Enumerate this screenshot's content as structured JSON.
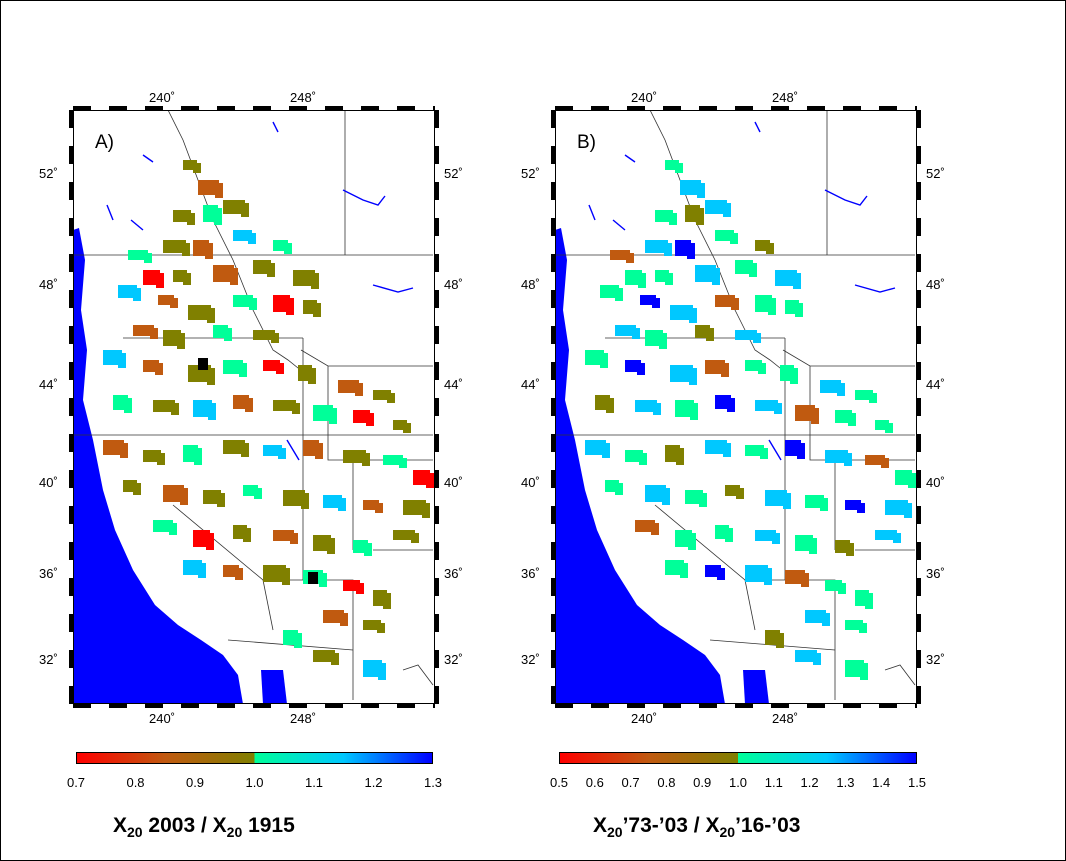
{
  "panels": [
    {
      "label": "A)",
      "top_lon_labels": [
        "240˚",
        "248˚"
      ],
      "bottom_lon_labels": [
        "240˚",
        "248˚"
      ],
      "left_lat_labels": [
        "52˚",
        "48˚",
        "44˚",
        "40˚",
        "36˚",
        "32˚"
      ],
      "right_lat_labels": [
        "52˚",
        "48˚",
        "44˚",
        "40˚",
        "36˚",
        "32˚"
      ],
      "colorbar": {
        "min": 0.7,
        "max": 1.3,
        "ticks": [
          "0.7",
          "0.8",
          "0.9",
          "1.0",
          "1.1",
          "1.2",
          "1.3"
        ],
        "title_parts": [
          "X",
          "20",
          " 2003 / X",
          "20",
          " 1915"
        ]
      }
    },
    {
      "label": "B)",
      "top_lon_labels": [
        "240˚",
        "248˚"
      ],
      "bottom_lon_labels": [
        "240˚",
        "248˚"
      ],
      "left_lat_labels": [
        "52˚",
        "48˚",
        "44˚",
        "40˚",
        "36˚",
        "32˚"
      ],
      "right_lat_labels": [
        "52˚",
        "48˚",
        "44˚",
        "40˚",
        "36˚",
        "32˚"
      ],
      "colorbar": {
        "min": 0.5,
        "max": 1.5,
        "ticks": [
          "0.5",
          "0.6",
          "0.7",
          "0.8",
          "0.9",
          "1.0",
          "1.1",
          "1.2",
          "1.3",
          "1.4",
          "1.5"
        ],
        "title_parts": [
          "X",
          "20",
          "’73-’03 / X",
          "20",
          "’16-’03"
        ]
      }
    }
  ],
  "colors": {
    "ocean": "#0000ff",
    "low": "#ff0000",
    "mid_low": "#c05a10",
    "neutral": "#808000",
    "mid_high": "#00ff99",
    "high_cyan": "#00c8ff",
    "high": "#0000ff",
    "extreme": "#000000"
  }
}
